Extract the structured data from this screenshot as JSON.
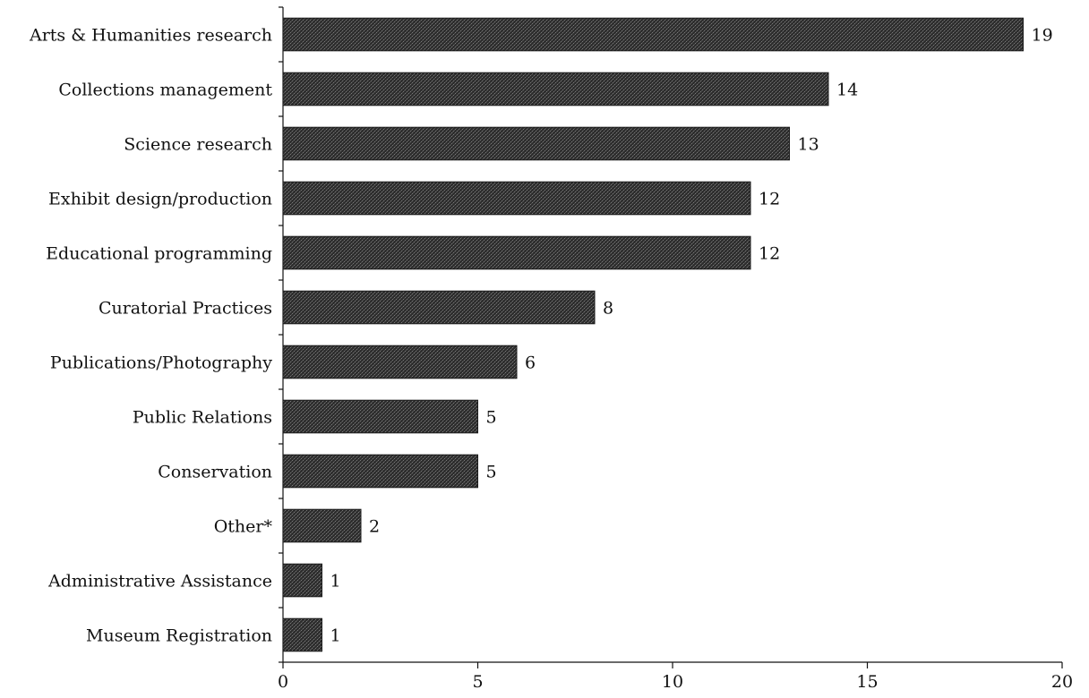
{
  "chart_data": {
    "type": "bar",
    "orientation": "horizontal",
    "categories": [
      "Arts & Humanities research",
      "Collections management",
      "Science research",
      "Exhibit design/production",
      "Educational programming",
      "Curatorial Practices",
      "Publications/Photography",
      "Public Relations",
      "Conservation",
      "Other*",
      "Administrative Assistance",
      "Museum Registration"
    ],
    "values": [
      19,
      14,
      13,
      12,
      12,
      8,
      6,
      5,
      5,
      2,
      1,
      1
    ],
    "title": "",
    "xlabel": "",
    "ylabel": "",
    "xlim": [
      0,
      20
    ],
    "xticks": [
      0,
      5,
      10,
      15,
      20
    ],
    "grid": false,
    "legend": "none",
    "bar_color": "#3c3c3c"
  }
}
